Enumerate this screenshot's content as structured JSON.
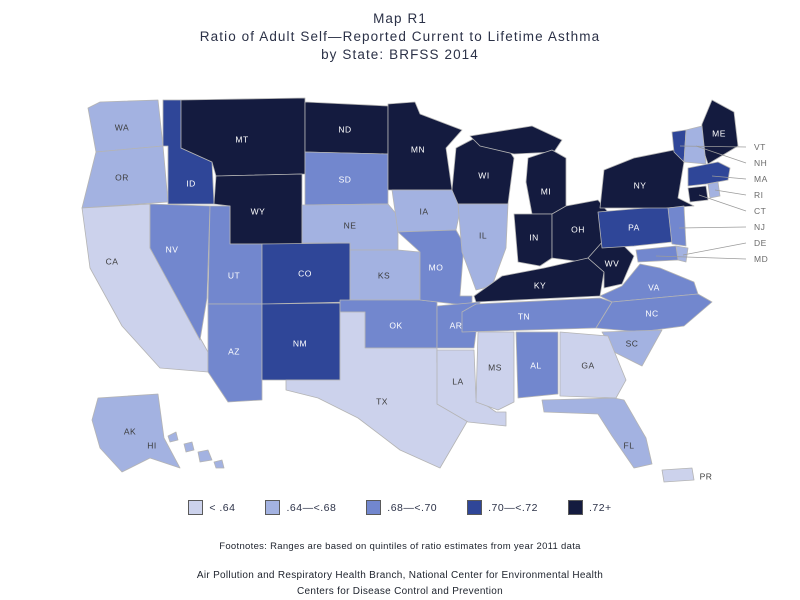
{
  "title": {
    "line1": "Map R1",
    "line2": "Ratio of Adult Self—Reported Current to Lifetime Asthma",
    "line3": "by State: BRFSS 2014"
  },
  "legend": {
    "entries": [
      {
        "label": "< .64",
        "color": "#ccd2ec"
      },
      {
        "label": ".64—<.68",
        "color": "#a3b2e1"
      },
      {
        "label": ".68—<.70",
        "color": "#7287ce"
      },
      {
        "label": ".70—<.72",
        "color": "#2f4698"
      },
      {
        "label": ".72+",
        "color": "#141b3f"
      }
    ]
  },
  "footnote": "Footnotes: Ranges are based on quintiles of ratio estimates from year 2011 data",
  "credits": [
    "Air Pollution and Respiratory Health Branch, National Center for Environmental Health",
    "Centers for Disease Control and Prevention"
  ],
  "chart_data": {
    "type": "choropleth",
    "title": "Map R1 — Ratio of Adult Self—Reported Current to Lifetime Asthma by State: BRFSS 2014",
    "categories": [
      "< .64",
      ".64—<.68",
      ".68—<.70",
      ".70—<.72",
      ".72+"
    ],
    "colors": [
      "#ccd2ec",
      "#a3b2e1",
      "#7287ce",
      "#2f4698",
      "#141b3f"
    ],
    "states": {
      "WA": 2,
      "OR": 2,
      "CA": 1,
      "NV": 3,
      "ID": 4,
      "MT": 5,
      "WY": 5,
      "UT": 3,
      "AZ": 3,
      "CO": 4,
      "NM": 4,
      "ND": 5,
      "SD": 3,
      "NE": 2,
      "KS": 2,
      "OK": 3,
      "TX": 1,
      "MN": 5,
      "IA": 2,
      "MO": 3,
      "AR": 3,
      "LA": 1,
      "WI": 5,
      "IL": 2,
      "MI": 5,
      "IN": 5,
      "OH": 5,
      "KY": 5,
      "TN": 3,
      "MS": 1,
      "AL": 3,
      "GA": 1,
      "FL": 2,
      "SC": 2,
      "NC": 3,
      "VA": 3,
      "WV": 5,
      "PA": 4,
      "NY": 5,
      "ME": 5,
      "VT": 4,
      "NH": 2,
      "MA": 4,
      "RI": 2,
      "CT": 5,
      "NJ": 3,
      "DE": 2,
      "MD": 3,
      "AK": 2,
      "HI": 2,
      "PR": 1
    }
  }
}
